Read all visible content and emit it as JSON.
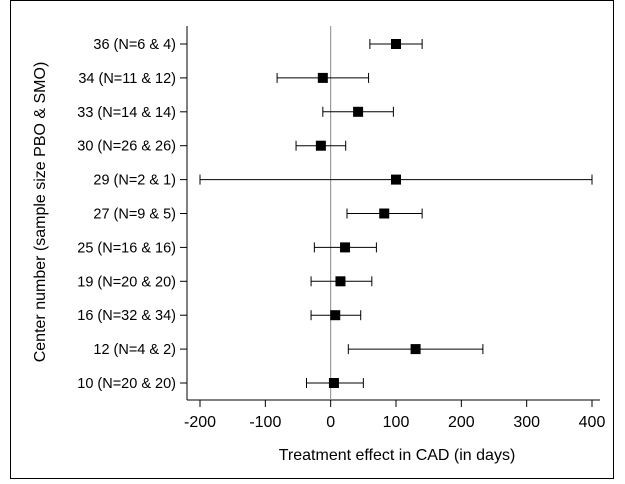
{
  "chart_data": {
    "type": "scatter",
    "subtype": "forest-plot",
    "xlabel": "Treatment effect in CAD (in days)",
    "ylabel": "Center number (sample size PBO & SMO)",
    "xlim": [
      -200,
      400
    ],
    "xticks": [
      -200,
      -100,
      0,
      100,
      200,
      300,
      400
    ],
    "reference_line": 0,
    "grid": false,
    "rows": [
      {
        "label": "36 (N=6 & 4)",
        "estimate": 100,
        "lower": 60,
        "upper": 140
      },
      {
        "label": "34 (N=11 & 12)",
        "estimate": -12,
        "lower": -82,
        "upper": 58
      },
      {
        "label": "33 (N=14 & 14)",
        "estimate": 42,
        "lower": -12,
        "upper": 96
      },
      {
        "label": "30 (N=26 & 26)",
        "estimate": -15,
        "lower": -53,
        "upper": 23
      },
      {
        "label": "29 (N=2 & 1)",
        "estimate": 100,
        "lower": -200,
        "upper": 400
      },
      {
        "label": "27 (N=9 & 5)",
        "estimate": 82,
        "lower": 25,
        "upper": 140
      },
      {
        "label": "25 (N=16 & 16)",
        "estimate": 22,
        "lower": -25,
        "upper": 70
      },
      {
        "label": "19 (N=20 & 20)",
        "estimate": 15,
        "lower": -30,
        "upper": 63
      },
      {
        "label": "16 (N=32 & 34)",
        "estimate": 7,
        "lower": -30,
        "upper": 46
      },
      {
        "label": "12 (N=4 & 2)",
        "estimate": 130,
        "lower": 27,
        "upper": 233
      },
      {
        "label": "10 (N=20 & 20)",
        "estimate": 5,
        "lower": -37,
        "upper": 50
      }
    ]
  }
}
